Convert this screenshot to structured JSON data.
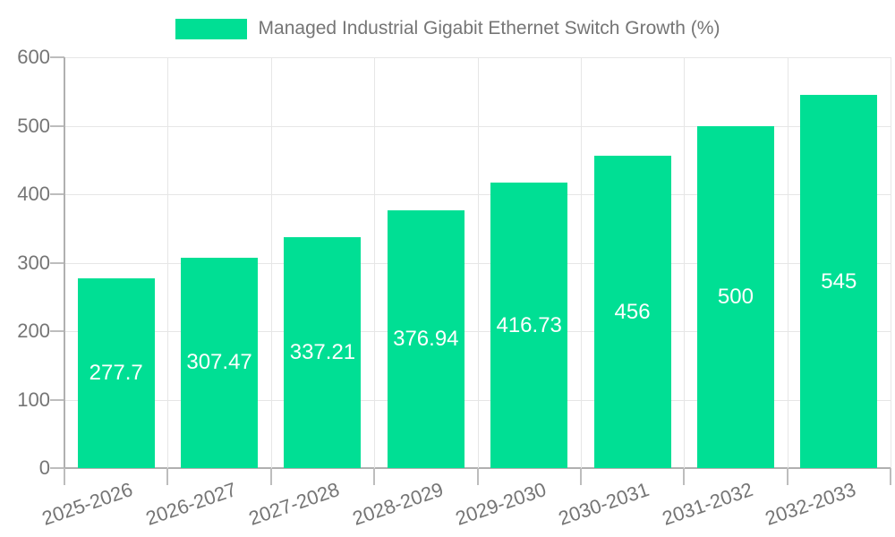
{
  "legend": {
    "title": "Managed Industrial Gigabit Ethernet Switch Growth (%)"
  },
  "chart_data": {
    "type": "bar",
    "title": "Managed Industrial Gigabit Ethernet Switch Growth (%)",
    "categories": [
      "2025-2026",
      "2026-2027",
      "2027-2028",
      "2028-2029",
      "2029-2030",
      "2030-2031",
      "2031-2032",
      "2032-2033"
    ],
    "values": [
      277.7,
      307.47,
      337.21,
      376.94,
      416.73,
      456,
      500,
      545
    ],
    "value_labels": [
      "277.7",
      "307.47",
      "337.21",
      "376.94",
      "416.73",
      "456",
      "500",
      "545"
    ],
    "xlabel": "",
    "ylabel": "",
    "ylim": [
      0,
      600
    ],
    "yticks": [
      0,
      100,
      200,
      300,
      400,
      500,
      600
    ],
    "grid": true,
    "legend_position": "top-center",
    "bar_color": "#00DF94",
    "value_label_color": "#ffffff",
    "axis_color": "#b0b0b0",
    "tick_color": "#bdbdbd",
    "grid_color": "#e6e6e6",
    "text_color": "#757575"
  }
}
